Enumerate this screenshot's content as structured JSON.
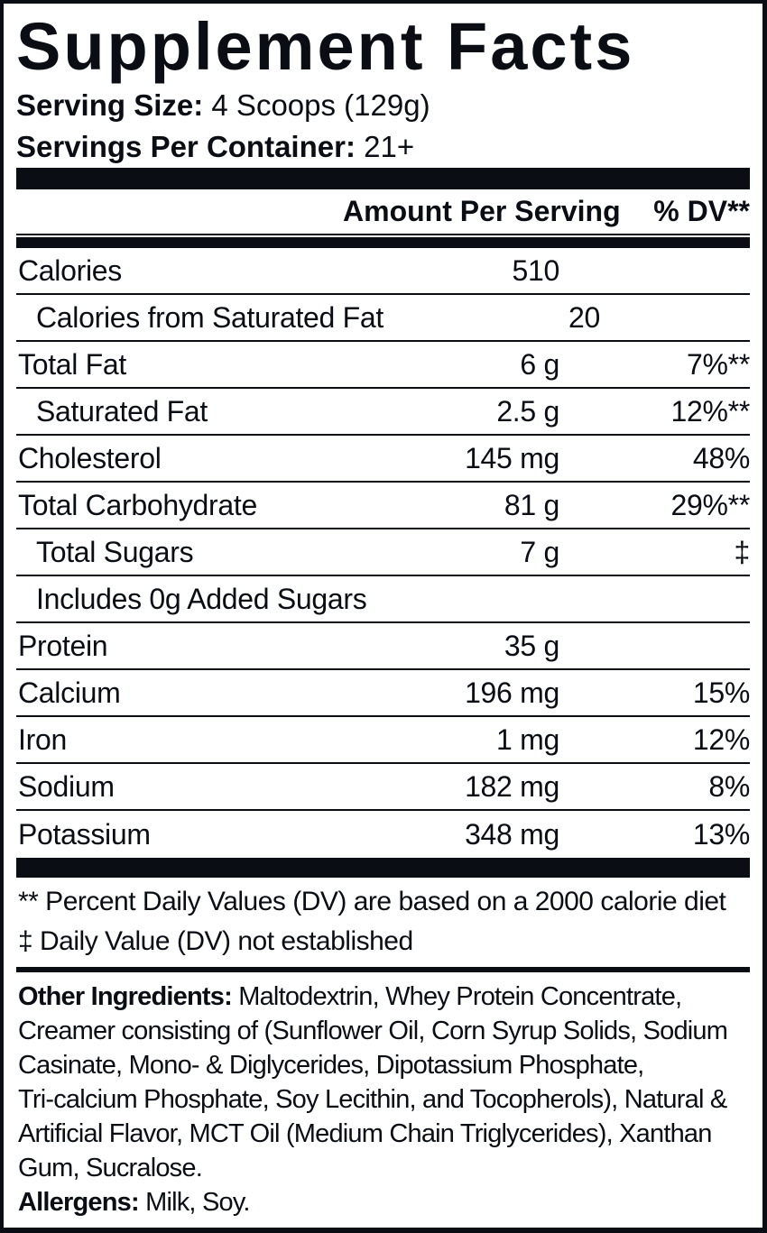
{
  "label": {
    "title": "Supplement Facts",
    "serving_size": {
      "label": "Serving Size:",
      "value": "4 Scoops (129g)"
    },
    "servings_per_container": {
      "label": "Servings Per Container:",
      "value": "21+"
    },
    "column_headers": {
      "amount": "Amount Per Serving",
      "dv": "% DV**"
    },
    "rows": [
      {
        "name": "Calories",
        "amount": "510",
        "dv": "",
        "indent": false
      },
      {
        "name": "Calories from Saturated Fat",
        "amount": "20",
        "dv": "",
        "indent": true
      },
      {
        "name": "Total Fat",
        "amount": "6 g",
        "dv": "7%**",
        "indent": false
      },
      {
        "name": "Saturated Fat",
        "amount": "2.5 g",
        "dv": "12%**",
        "indent": true
      },
      {
        "name": "Cholesterol",
        "amount": "145 mg",
        "dv": "48%",
        "indent": false
      },
      {
        "name": "Total Carbohydrate",
        "amount": "81 g",
        "dv": "29%**",
        "indent": false
      },
      {
        "name": "Total Sugars",
        "amount": "7 g",
        "dv": "‡",
        "indent": true
      },
      {
        "name": "Includes 0g Added Sugars",
        "amount": "",
        "dv": "",
        "indent": true
      },
      {
        "name": "Protein",
        "amount": "35 g",
        "dv": "",
        "indent": false
      },
      {
        "name": "Calcium",
        "amount": "196 mg",
        "dv": "15%",
        "indent": false
      },
      {
        "name": "Iron",
        "amount": "1 mg",
        "dv": "12%",
        "indent": false
      },
      {
        "name": "Sodium",
        "amount": "182 mg",
        "dv": "8%",
        "indent": false
      },
      {
        "name": "Potassium",
        "amount": "348 mg",
        "dv": "13%",
        "indent": false
      }
    ],
    "footnotes": [
      "** Percent Daily Values (DV) are based on a 2000 calorie diet",
      "‡ Daily Value (DV) not established"
    ],
    "other_ingredients": {
      "label": "Other Ingredients:",
      "line1_rest": "Maltodextrin, Whey Protein Concentrate,",
      "cont": [
        "Creamer consisting of (Sunflower Oil, Corn Syrup Solids, Sodium",
        "Casinate, Mono- & Diglycerides, Dipotassium Phosphate,",
        "Tri-calcium Phosphate, Soy Lecithin, and Tocopherols), Natural &",
        "Artificial Flavor, MCT Oil (Medium Chain Triglycerides), Xanthan",
        "Gum, Sucralose."
      ]
    },
    "allergens": {
      "label": "Allergens:",
      "value": "Milk, Soy."
    },
    "colors": {
      "ink": "#0a0e14",
      "background": "#ffffff"
    }
  }
}
